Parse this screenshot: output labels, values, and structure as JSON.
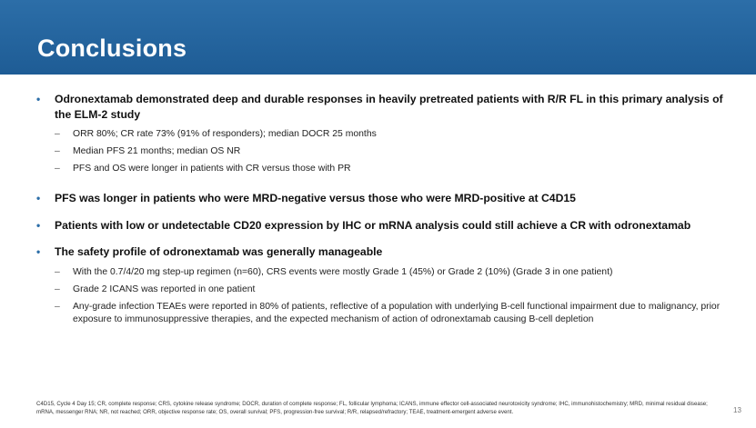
{
  "header": {
    "title": "Conclusions"
  },
  "bullets": [
    {
      "text": "Odronextamab demonstrated deep and durable responses in heavily pretreated patients with R/R FL in this primary analysis of the ELM-2 study",
      "subs": [
        "ORR 80%; CR rate 73% (91% of responders); median DOCR 25 months",
        "Median PFS 21 months; median OS NR",
        "PFS and OS were longer in patients with CR versus those with PR"
      ]
    },
    {
      "text": "PFS was longer in patients who were MRD-negative versus those who were MRD-positive at C4D15",
      "subs": []
    },
    {
      "text": "Patients with low or undetectable CD20 expression by IHC or mRNA analysis could still achieve a CR with odronextamab",
      "subs": []
    },
    {
      "text": "The safety profile of odronextamab was generally manageable",
      "subs": [
        "With the 0.7/4/20 mg step-up regimen (n=60), CRS events were mostly Grade 1 (45%) or Grade 2 (10%) (Grade 3 in one patient)",
        "Grade 2 ICANS was reported in one patient",
        "Any-grade infection TEAEs were reported in 80% of patients, reflective of a population with underlying B-cell functional impairment due to malignancy, prior exposure to immunosuppressive therapies, and the expected mechanism of action of odronextamab causing B-cell depletion"
      ]
    }
  ],
  "bullet_symbol": "•",
  "dash_symbol": "–",
  "footnote": "C4D15, Cycle 4 Day 15; CR, complete response; CRS, cytokine release syndrome; DOCR, duration of complete response; FL, follicular lymphoma; ICANS, immune effector cell-associated neurotoxicity syndrome; IHC, immunohistochemistry; MRD, minimal residual disease; mRNA, messenger RNA; NR, not reached; ORR, objective response rate; OS, overall survival; PFS, progression-free survival; R/R, relapsed/refractory; TEAE, treatment-emergent adverse event.",
  "page_number": "13",
  "colors": {
    "header_bg": "#1e5c95",
    "bullet": "#2c6ea8"
  }
}
